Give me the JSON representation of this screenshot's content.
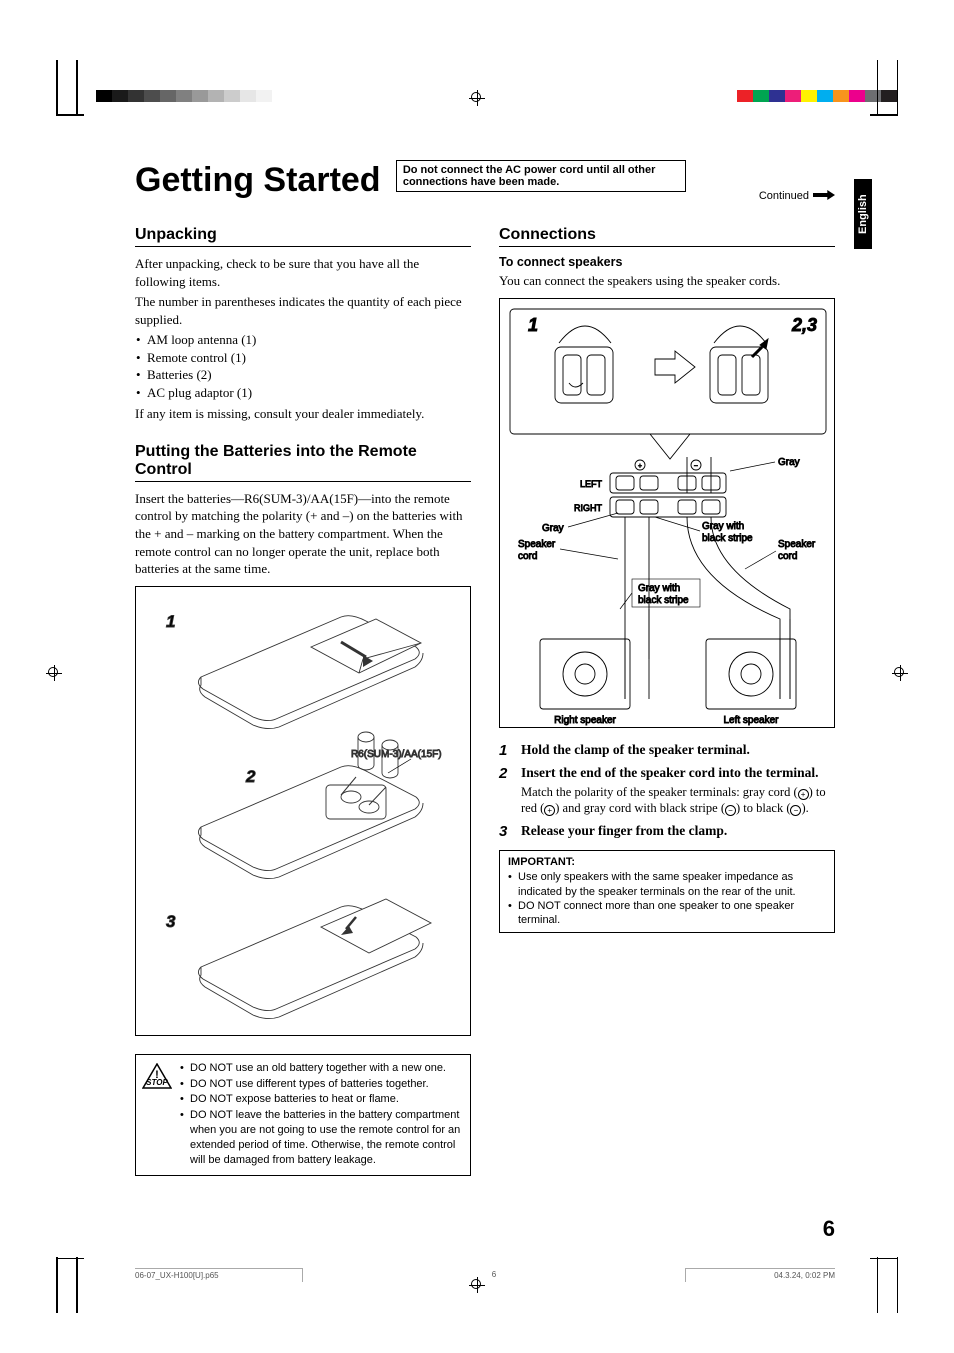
{
  "colorbar_right": [
    "#ec2227",
    "#00a551",
    "#2e3192",
    "#ed1e79",
    "#fff200",
    "#00aeef",
    "#f7941d",
    "#ec008c",
    "#6d6e71",
    "#231f20"
  ],
  "colorbar_left_shades": [
    "#000",
    "#1a1a1a",
    "#333",
    "#4d4d4d",
    "#666",
    "#808080",
    "#999",
    "#b3b3b3",
    "#ccc",
    "#e6e6e6",
    "#f2f2f2",
    "#fff"
  ],
  "lang": "English",
  "title": "Getting Started",
  "note_box": "Do not connect the AC power cord until all other connections have been made.",
  "continued": "Continued",
  "left": {
    "h_unpacking": "Unpacking",
    "p1": "After unpacking, check to be sure that you have all the following items.",
    "p2": "The number in parentheses indicates the quantity of each piece supplied.",
    "items": [
      "AM loop antenna (1)",
      "Remote control (1)",
      "Batteries (2)",
      "AC plug adaptor (1)"
    ],
    "p3": "If any item is missing, consult your dealer immediately.",
    "h_batt": "Putting the Batteries into the Remote Control",
    "p4": "Insert the batteries—R6(SUM-3)/AA(15F)—into the remote control by matching the polarity (+ and –) on the batteries with the + and – marking on the battery compartment. When the remote control can no longer operate the unit, replace both batteries at the same time.",
    "fig_steps": [
      "1",
      "2",
      "3"
    ],
    "batt_label": "R6(SUM-3)/AA(15F)",
    "warnings": [
      "DO NOT use an old battery together with a new one.",
      "DO NOT use different types of batteries together.",
      "DO NOT expose batteries to heat or flame.",
      "DO NOT leave the batteries in the battery compartment when you are not going to use the remote control for an extended period of time. Otherwise, the remote control will be damaged from battery leakage."
    ]
  },
  "right": {
    "h_conn": "Connections",
    "h_spk": "To connect speakers",
    "p1": "You can connect the speakers using the speaker cords.",
    "fig_top": {
      "a": "1",
      "b": "2,3"
    },
    "labels": {
      "left": "LEFT",
      "right": "RIGHT",
      "gray": "Gray",
      "gray_stripe": "Gray with black stripe",
      "spk_cord": "Speaker cord",
      "rspk": "Right speaker",
      "lspk": "Left speaker"
    },
    "steps": [
      {
        "n": "1",
        "t": "Hold the clamp of the speaker terminal.",
        "d": ""
      },
      {
        "n": "2",
        "t": "Insert the end of the speaker cord into the terminal.",
        "d": "Match the polarity of the speaker terminals: gray cord (⊕) to red (⊕) and gray cord with black stripe (⊖) to black (⊖)."
      },
      {
        "n": "3",
        "t": "Release your finger from the clamp.",
        "d": ""
      }
    ],
    "imp_t": "IMPORTANT:",
    "imp": [
      "Use only speakers with the same speaker impedance as indicated by the speaker terminals on the rear of the unit.",
      "DO NOT connect more than one speaker to one speaker terminal."
    ]
  },
  "pagenum": "6",
  "footer": {
    "file": "06-07_UX-H100[U].p65",
    "pg": "6",
    "ts": "04.3.24, 0:02 PM"
  }
}
